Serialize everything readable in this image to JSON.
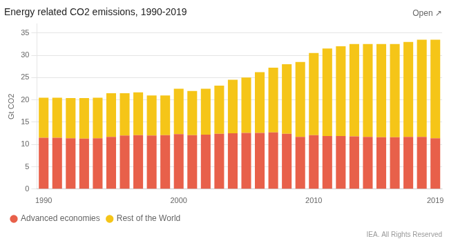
{
  "chart_data": {
    "type": "bar",
    "title": "Energy related CO2 emissions, 1990-2019",
    "ylabel": "Gt CO2",
    "annotations": [
      "Open ↗",
      "IEA. All Rights Reserved"
    ],
    "categories": [
      "1990",
      null,
      null,
      null,
      null,
      null,
      null,
      null,
      null,
      null,
      "2000",
      null,
      null,
      null,
      null,
      null,
      null,
      null,
      null,
      null,
      "2010",
      null,
      null,
      null,
      null,
      null,
      null,
      null,
      null,
      "2019"
    ],
    "series": [
      {
        "name": "Advanced economies",
        "color": "#E8604A",
        "values": [
          11.5,
          11.5,
          11.4,
          11.3,
          11.4,
          11.7,
          12.0,
          12.1,
          12.0,
          12.1,
          12.3,
          12.1,
          12.2,
          12.4,
          12.5,
          12.6,
          12.6,
          12.7,
          12.4,
          11.7,
          12.1,
          11.9,
          11.9,
          11.8,
          11.7,
          11.6,
          11.6,
          11.7,
          11.7,
          11.4
        ]
      },
      {
        "name": "Rest of the World",
        "color": "#F5C518",
        "values": [
          9.0,
          9.0,
          9.0,
          9.1,
          9.1,
          9.8,
          9.5,
          9.6,
          9.0,
          8.9,
          10.2,
          9.9,
          10.3,
          10.8,
          12.0,
          12.4,
          13.6,
          14.5,
          15.6,
          16.8,
          18.4,
          19.6,
          20.1,
          20.7,
          20.8,
          20.9,
          20.9,
          21.3,
          21.8,
          22.1
        ]
      }
    ],
    "stacked": true,
    "ylim": [
      0,
      37
    ],
    "yticks": [
      0,
      5,
      10,
      15,
      20,
      25,
      30,
      35
    ],
    "grid": true,
    "legend": "bottom-left"
  }
}
